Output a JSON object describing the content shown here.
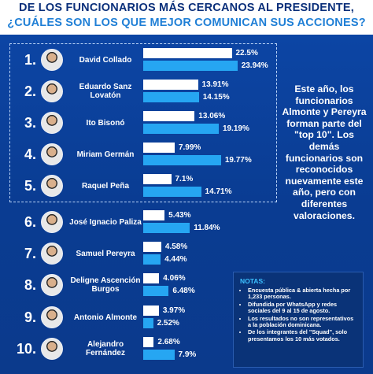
{
  "header": {
    "title_line1": "DE LOS FUNCIONARIOS MÁS CERCANOS AL PRESIDENTE,",
    "title_line2": "¿CUÁLES SON LOS QUE MEJOR COMUNICAN SUS ACCIONES?"
  },
  "side_text": "Este año, los funcionarios Almonte y Pereyra forman parte del \"top 10\". Los demás funcionarios son reconocidos nuevamente este año, pero con diferentes valoraciones.",
  "notes": {
    "title": "NOTAS:",
    "items": [
      "Encuesta pública & abierta hecha por 1,233 personas.",
      "Difundida por WhatsApp y redes sociales del 9 al 15 de agosto.",
      "Los resultados no son representativos a la población dominicana.",
      "De los integrantes del \"Squad\", solo presentamos los 10 más votados."
    ]
  },
  "colors": {
    "background": "#0b3f9a",
    "bar_first": "#ffffff",
    "bar_second": "#26a6f2",
    "title_dark": "#0a2f7a",
    "title_light": "#1f7fd6"
  },
  "chart_data": {
    "type": "bar",
    "orientation": "horizontal",
    "categories": [
      "David Collado",
      "Eduardo Sanz Lovatón",
      "Ito Bisonó",
      "Miriam Germán",
      "Raquel Peña",
      "José Ignacio Paliza",
      "Samuel Pereyra",
      "Deligne Ascención Burgos",
      "Antonio Almonte",
      "Alejandro Fernández"
    ],
    "ranks": [
      "1.",
      "2.",
      "3.",
      "4.",
      "5.",
      "6.",
      "7.",
      "8.",
      "9.",
      "10."
    ],
    "series": [
      {
        "values": [
          22.5,
          13.91,
          13.06,
          7.99,
          7.1,
          5.43,
          4.58,
          4.06,
          3.97,
          2.68
        ],
        "labels": [
          "22.5%",
          "13.91%",
          "13.06%",
          "7.99%",
          "7.1%",
          "5.43%",
          "4.58%",
          "4.06%",
          "3.97%",
          "2.68%"
        ]
      },
      {
        "values": [
          23.94,
          14.15,
          19.19,
          19.77,
          14.71,
          11.84,
          4.44,
          6.48,
          2.52,
          7.9
        ],
        "labels": [
          "23.94%",
          "14.15%",
          "19.19%",
          "19.77%",
          "14.71%",
          "11.84%",
          "4.44%",
          "6.48%",
          "2.52%",
          "7.9%"
        ]
      }
    ],
    "grid": false
  }
}
